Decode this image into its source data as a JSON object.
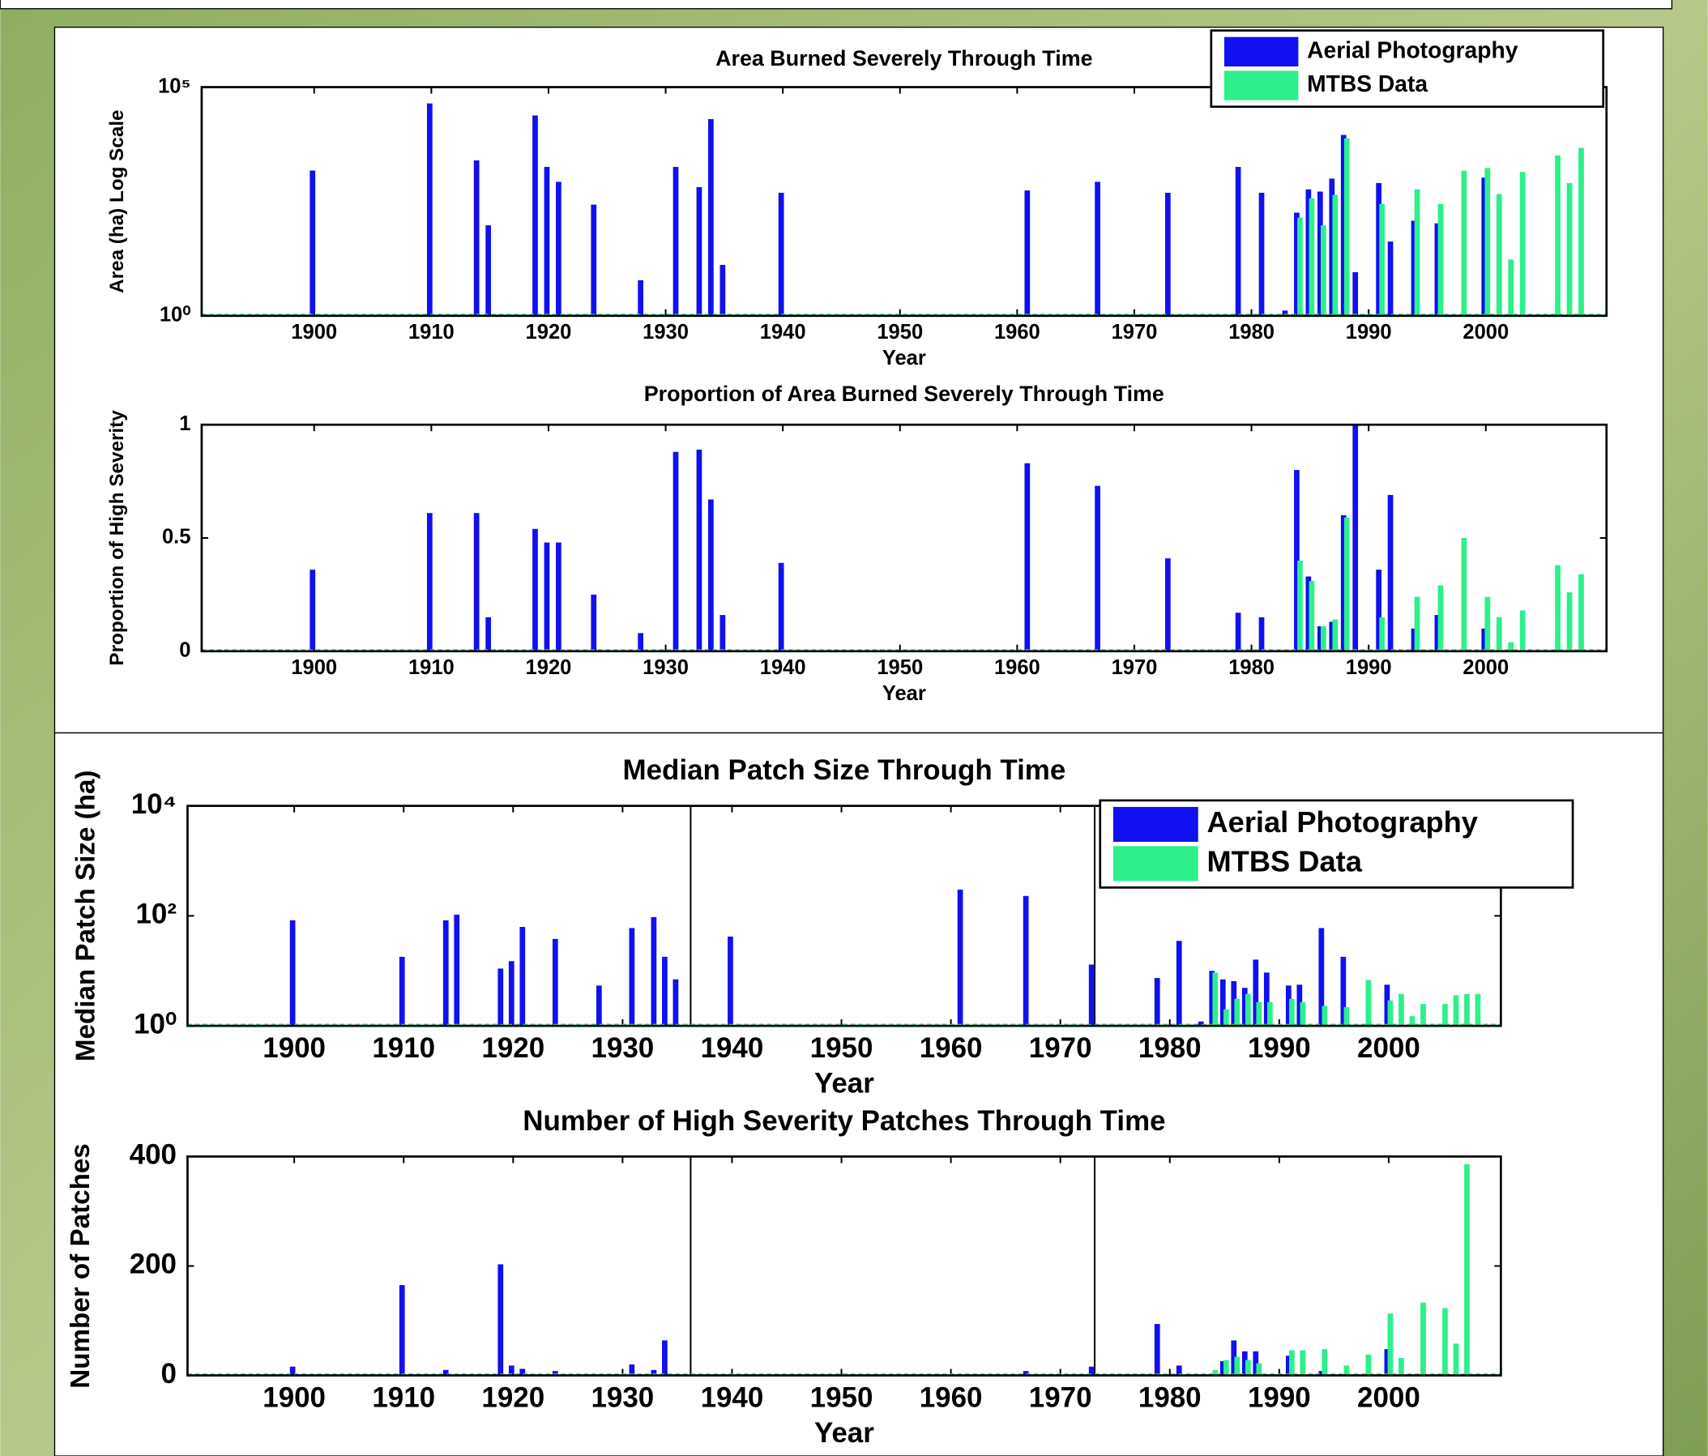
{
  "chart_data": [
    {
      "type": "bar",
      "title": "Area Burned Severely Through Time",
      "xlabel": "Year",
      "ylabel": "Area (ha) Log Scale",
      "yscale": "log",
      "legend": "upper right",
      "xlim": [
        1890.4,
        2010.3
      ],
      "xticks": [
        1900,
        1910,
        1920,
        1930,
        1940,
        1950,
        1960,
        1970,
        1980,
        1990,
        2000
      ],
      "ylim": [
        1,
        100000
      ],
      "yticks": [
        {
          "value": 1,
          "label": "10⁰"
        },
        {
          "value": 100000,
          "label": "10⁵"
        }
      ],
      "series": [
        {
          "name": "Aerial Photography",
          "color": "#1010f0",
          "x": [
            1900,
            1910,
            1914,
            1915,
            1919,
            1920,
            1921,
            1924,
            1928,
            1931,
            1933,
            1934,
            1935,
            1940,
            1961,
            1967,
            1973,
            1979,
            1981,
            1983,
            1984,
            1985,
            1986,
            1987,
            1988,
            1989,
            1991,
            1992,
            1994,
            1996,
            2000
          ],
          "values": [
            1500,
            44000,
            2500,
            95,
            24000,
            1800,
            850,
            270,
            6,
            1800,
            650,
            20000,
            13,
            490,
            550,
            850,
            490,
            1800,
            490,
            1.3,
            180,
            580,
            520,
            1000,
            9000,
            9,
            800,
            42,
            120,
            105,
            1050
          ]
        },
        {
          "name": "MTBS Data",
          "color": "#2cf08a",
          "x": [
            1984,
            1985,
            1986,
            1987,
            1988,
            1991,
            1994,
            1996,
            1998,
            2000,
            2001,
            2002,
            2003,
            2006,
            2007,
            2008
          ],
          "values": [
            140,
            370,
            95,
            440,
            7600,
            280,
            580,
            280,
            1480,
            1700,
            460,
            17,
            1400,
            3200,
            800,
            4700
          ]
        }
      ]
    },
    {
      "type": "bar",
      "title": "Proportion of Area Burned Severely Through Time",
      "xlabel": "Year",
      "ylabel": "Proportion of High Severity",
      "xlim": [
        1890.4,
        2010.3
      ],
      "xticks": [
        1900,
        1910,
        1920,
        1930,
        1940,
        1950,
        1960,
        1970,
        1980,
        1990,
        2000
      ],
      "ylim": [
        0,
        1
      ],
      "yticks": [
        0,
        0.5,
        1
      ],
      "series": [
        {
          "name": "Aerial Photography",
          "color": "#1010f0",
          "x": [
            1900,
            1910,
            1914,
            1915,
            1919,
            1920,
            1921,
            1924,
            1928,
            1931,
            1933,
            1934,
            1935,
            1940,
            1961,
            1967,
            1973,
            1979,
            1981,
            1984,
            1985,
            1986,
            1987,
            1988,
            1989,
            1991,
            1992,
            1994,
            1996,
            2000
          ],
          "values": [
            0.36,
            0.61,
            0.61,
            0.15,
            0.54,
            0.48,
            0.48,
            0.25,
            0.08,
            0.88,
            0.89,
            0.67,
            0.16,
            0.39,
            0.83,
            0.73,
            0.41,
            0.17,
            0.15,
            0.8,
            0.33,
            0.11,
            0.13,
            0.6,
            1,
            0.36,
            0.69,
            0.1,
            0.16,
            0.1
          ]
        },
        {
          "name": "MTBS Data",
          "color": "#2cf08a",
          "x": [
            1984,
            1985,
            1986,
            1987,
            1988,
            1991,
            1994,
            1996,
            1998,
            2000,
            2001,
            2002,
            2003,
            2006,
            2007,
            2008
          ],
          "values": [
            0.4,
            0.31,
            0.11,
            0.14,
            0.59,
            0.15,
            0.24,
            0.29,
            0.5,
            0.24,
            0.15,
            0.04,
            0.18,
            0.38,
            0.26,
            0.34
          ]
        }
      ]
    },
    {
      "type": "bar",
      "title": "Median Patch Size Through Time",
      "xlabel": "Year",
      "ylabel": "Median Patch Size (ha)",
      "yscale": "log",
      "legend": "upper right",
      "xlim": [
        1890.25,
        2010.25
      ],
      "xticks": [
        1900,
        1910,
        1920,
        1930,
        1940,
        1950,
        1960,
        1970,
        1980,
        1990,
        2000
      ],
      "ylim": [
        1,
        10000
      ],
      "yticks": [
        {
          "value": 1,
          "label": "10⁰"
        },
        {
          "value": 100,
          "label": "10²"
        },
        {
          "value": 10000,
          "label": "10⁴"
        }
      ],
      "series": [
        {
          "name": "Aerial Photography",
          "color": "#1010f0",
          "x": [
            1900,
            1910,
            1914,
            1915,
            1919,
            1920,
            1921,
            1924,
            1928,
            1931,
            1933,
            1934,
            1935,
            1940,
            1961,
            1967,
            1973,
            1979,
            1981,
            1983,
            1984,
            1985,
            1986,
            1987,
            1988,
            1989,
            1991,
            1992,
            1994,
            1996,
            2000
          ],
          "values": [
            83,
            18,
            83,
            105,
            11,
            15,
            63,
            38,
            5.4,
            60,
            95,
            18,
            7,
            42,
            300,
            230,
            13,
            7.4,
            35,
            1.2,
            10,
            7,
            6.5,
            4.9,
            16,
            9.3,
            5.4,
            5.6,
            60,
            18,
            5.6
          ]
        },
        {
          "name": "MTBS Data",
          "color": "#2cf08a",
          "x": [
            1984,
            1985,
            1986,
            1987,
            1988,
            1989,
            1991,
            1992,
            1994,
            1996,
            1998,
            2000,
            2001,
            2002,
            2003,
            2005,
            2006,
            2007,
            2008
          ],
          "values": [
            9.3,
            2,
            3.1,
            3.8,
            2.7,
            2.7,
            3.1,
            2.7,
            2.3,
            2.2,
            6.8,
            2.9,
            3.8,
            1.5,
            2.5,
            2.5,
            3.6,
            3.8,
            3.8
          ]
        }
      ]
    },
    {
      "type": "bar",
      "title": "Number of High Severity Patches Through Time",
      "xlabel": "Year",
      "ylabel": "Number of Patches",
      "xlim": [
        1890.25,
        2010.25
      ],
      "xticks": [
        1900,
        1910,
        1920,
        1930,
        1940,
        1950,
        1960,
        1970,
        1980,
        1990,
        2000
      ],
      "ylim": [
        0,
        400
      ],
      "yticks": [
        0,
        200,
        400
      ],
      "series": [
        {
          "name": "Aerial Photography",
          "color": "#1010f0",
          "x": [
            1900,
            1910,
            1914,
            1919,
            1920,
            1921,
            1924,
            1931,
            1933,
            1934,
            1967,
            1973,
            1979,
            1981,
            1985,
            1986,
            1987,
            1988,
            1991,
            1994,
            2000
          ],
          "values": [
            16,
            165,
            10,
            203,
            18,
            12,
            8,
            20,
            10,
            64,
            8,
            16,
            94,
            18,
            26,
            64,
            44,
            44,
            36,
            8,
            48
          ]
        },
        {
          "name": "MTBS Data",
          "color": "#2cf08a",
          "x": [
            1984,
            1985,
            1986,
            1987,
            1988,
            1991,
            1992,
            1994,
            1996,
            1998,
            2000,
            2001,
            2003,
            2005,
            2006,
            2007
          ],
          "values": [
            10,
            28,
            34,
            28,
            22,
            46,
            46,
            48,
            18,
            38,
            113,
            32,
            133,
            123,
            58,
            386
          ]
        }
      ]
    }
  ]
}
